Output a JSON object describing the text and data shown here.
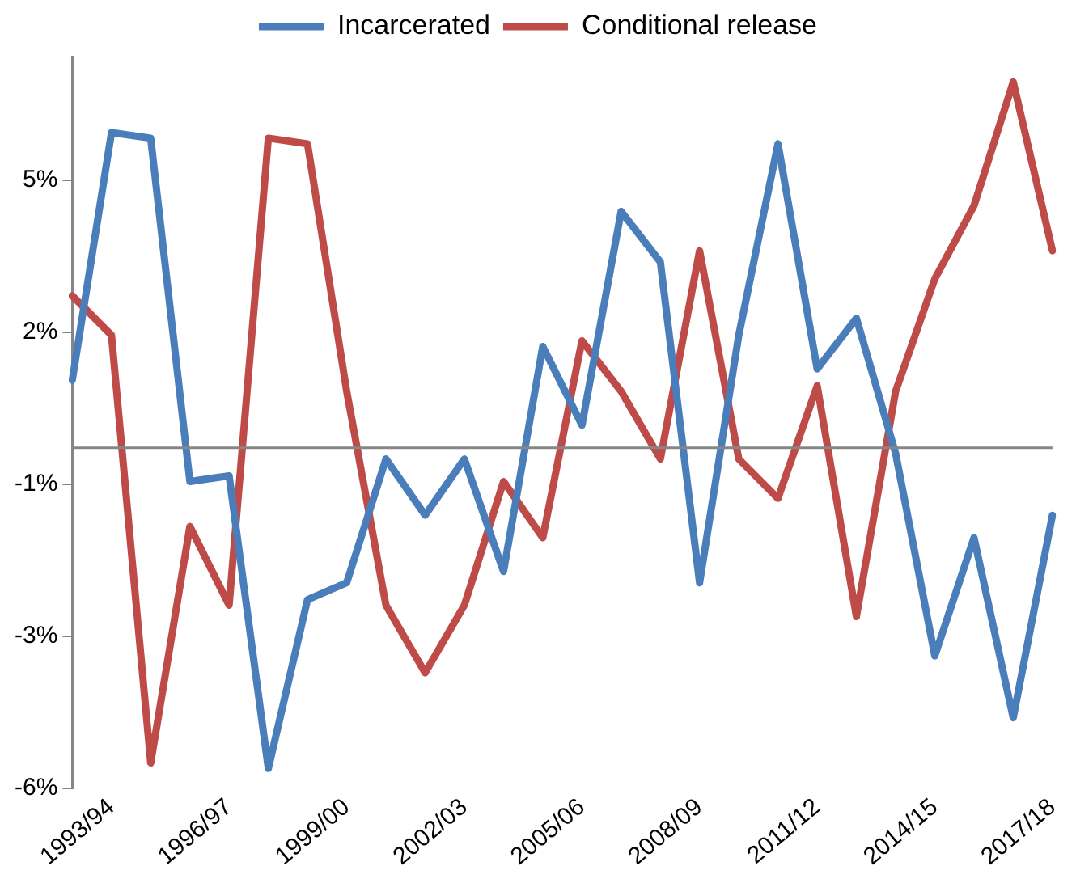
{
  "chart_data": {
    "type": "line",
    "categories": [
      null,
      "1993/94",
      null,
      null,
      "1996/97",
      null,
      null,
      "1999/00",
      null,
      null,
      "2002/03",
      null,
      null,
      "2005/06",
      null,
      null,
      "2008/09",
      null,
      null,
      "2011/12",
      null,
      null,
      "2014/15",
      null,
      null,
      "2017/18"
    ],
    "series": [
      {
        "name": "Incarcerated",
        "color": "#4a7ebb",
        "values": [
          1.2,
          5.6,
          5.5,
          -0.6,
          -0.5,
          -5.7,
          -2.7,
          -2.4,
          -0.2,
          -1.2,
          -0.2,
          -2.2,
          1.8,
          0.4,
          4.2,
          3.3,
          -2.4,
          2.0,
          5.4,
          1.4,
          2.3,
          -0.1,
          -3.7,
          -1.6,
          -4.8,
          -1.2
        ]
      },
      {
        "name": "Conditional release",
        "color": "#be4b48",
        "values": [
          2.7,
          2.0,
          -5.6,
          -1.4,
          -2.8,
          5.5,
          5.4,
          1.0,
          -2.8,
          -4.0,
          -2.8,
          -0.6,
          -1.6,
          1.9,
          1.0,
          -0.2,
          3.5,
          -0.2,
          -0.9,
          1.1,
          -3.0,
          1.0,
          3.0,
          4.3,
          6.5,
          3.5
        ]
      }
    ],
    "ylim": [
      -6.05,
      6.95
    ],
    "yticks": [
      {
        "value": 4.75,
        "label": "5%"
      },
      {
        "value": 2.05,
        "label": "2%"
      },
      {
        "value": -0.65,
        "label": "-1%"
      },
      {
        "value": -3.35,
        "label": "-3%"
      },
      {
        "value": -6.05,
        "label": "-6%"
      }
    ],
    "ref_lines": [
      {
        "axis": "y",
        "value": 0,
        "color": "#868686"
      }
    ],
    "grid": false,
    "legend": "top",
    "marker": "none",
    "line_style": "solid"
  }
}
